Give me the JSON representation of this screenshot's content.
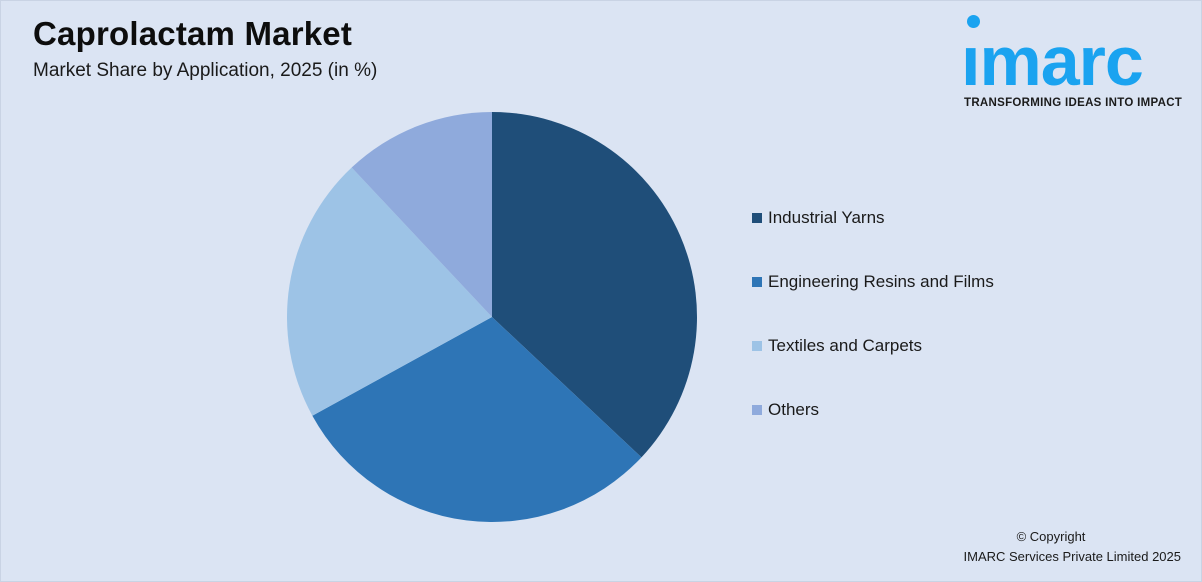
{
  "header": {
    "title": "Caprolactam Market",
    "subtitle": "Market Share by Application, 2025 (in %)"
  },
  "logo": {
    "wordmark": "ımarc",
    "tagline": "TRANSFORMING IDEAS INTO IMPACT",
    "color": "#1aa3f0"
  },
  "footer": {
    "copyright_line1": "© Copyright",
    "copyright_line2": "IMARC Services Private Limited 2025"
  },
  "legend": {
    "items": [
      {
        "label": "Industrial Yarns",
        "color": "#1f4e79"
      },
      {
        "label": "Engineering Resins and Films",
        "color": "#2e75b6"
      },
      {
        "label": "Textiles and Carpets",
        "color": "#9dc3e6"
      },
      {
        "label": "Others",
        "color": "#8faadc"
      }
    ]
  },
  "chart_data": {
    "type": "pie",
    "title": "Caprolactam Market",
    "subtitle": "Market Share by Application, 2025 (in %)",
    "categories": [
      "Industrial Yarns",
      "Engineering Resins and Films",
      "Textiles and Carpets",
      "Others"
    ],
    "values": [
      37,
      30,
      21,
      12
    ],
    "colors": [
      "#1f4e79",
      "#2e75b6",
      "#9dc3e6",
      "#8faadc"
    ],
    "start_angle": "12 o'clock, clockwise",
    "data_labels": false,
    "legend_position": "right"
  }
}
